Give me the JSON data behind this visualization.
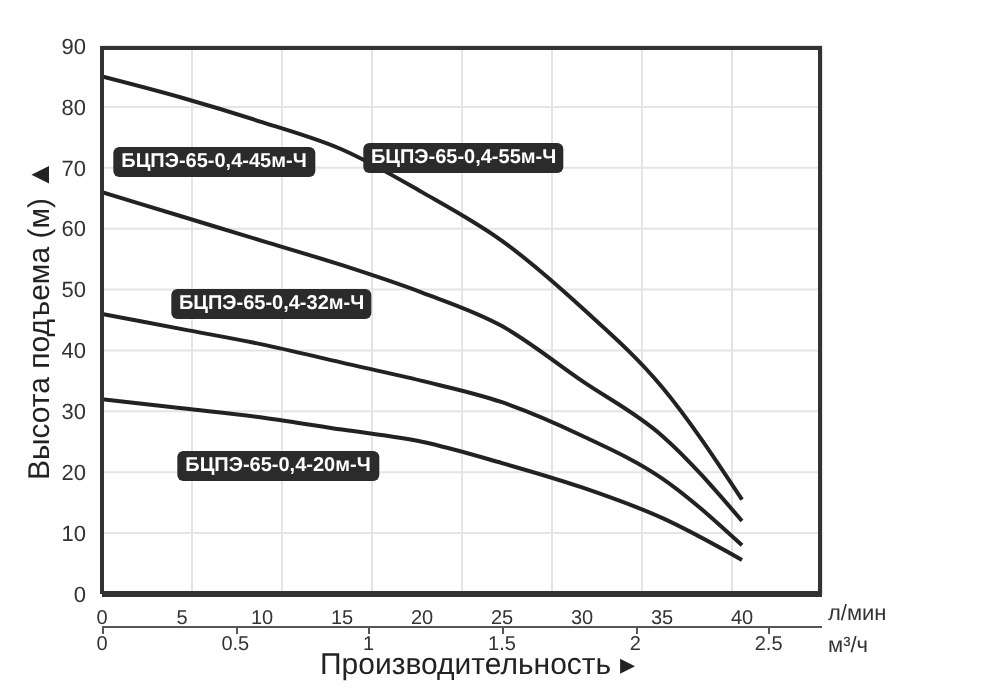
{
  "chart_data": {
    "type": "line",
    "xlabel": "Производительность ▸",
    "ylabel": "Высота подъема (м) ▲",
    "x": [
      0,
      5,
      10,
      15,
      20,
      25,
      30,
      35,
      40
    ],
    "series": [
      {
        "name": "БЦПЭ-65-0,4-55м-Ч",
        "color": "#222222",
        "values": [
          85,
          81.5,
          77.5,
          73,
          66,
          58,
          47,
          34,
          15.5
        ]
      },
      {
        "name": "БЦПЭ-65-0,4-45м-Ч",
        "color": "#222222",
        "values": [
          66,
          62,
          58,
          54,
          49.5,
          44,
          35,
          26,
          12
        ]
      },
      {
        "name": "БЦПЭ-65-0,4-32м-Ч",
        "color": "#222222",
        "values": [
          46,
          43.5,
          41,
          38,
          35,
          31.5,
          26,
          19,
          8
        ]
      },
      {
        "name": "БЦПЭ-65-0,4-20м-Ч",
        "color": "#222222",
        "values": [
          32,
          30.5,
          29,
          27,
          25,
          21.5,
          17.5,
          12.5,
          5.6
        ]
      }
    ],
    "xlim": [
      0,
      45
    ],
    "xticks": [
      0,
      5,
      10,
      15,
      20,
      25,
      30,
      35,
      40
    ],
    "x2lim": [
      0,
      2.7
    ],
    "x2ticks": [
      0,
      0.5,
      1,
      1.5,
      2,
      2.5
    ],
    "ylim": [
      0,
      90
    ],
    "yticks": [
      0,
      10,
      20,
      30,
      40,
      50,
      60,
      70,
      80,
      90
    ],
    "grid": true,
    "marker": "none",
    "line_style": "solid",
    "annotations": [
      "л/мин",
      "м³/ч"
    ]
  }
}
